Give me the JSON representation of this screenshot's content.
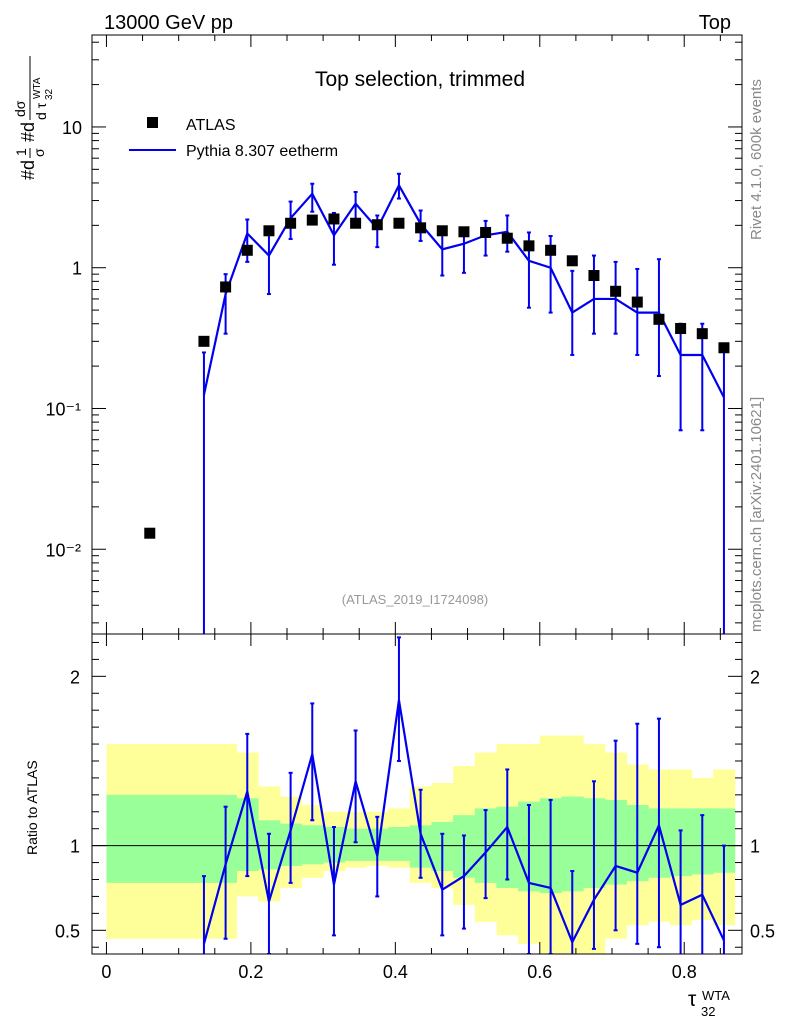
{
  "header": {
    "energy": "13000 GeV pp",
    "process": "Top"
  },
  "side": {
    "rivet": "Rivet 4.1.0,  600k events",
    "source": "mcplots.cern.ch [arXiv:2401.10621]"
  },
  "watermark": "(ATLAS_2019_I1724098)",
  "colors": {
    "data": "#000000",
    "mc": "#0000ee",
    "band_outer": "#ffff99",
    "band_inner": "#99ff99"
  },
  "chart_data": {
    "type": "line",
    "title": "Top selection, trimmed",
    "xlabel": "τ32 WTA",
    "ylabel_main": "#d1/σ #d dσ/d τ32 WTA",
    "ylabel_ratio": "Ratio to ATLAS",
    "xlim": [
      -0.02,
      0.88
    ],
    "ylim_main": [
      0.0025,
      45
    ],
    "ylim_ratio": [
      0.36,
      2.25
    ],
    "x_ticks": [
      "0",
      "0.2",
      "0.4",
      "0.6",
      "0.8"
    ],
    "y_ticks_main": [
      "10⁻²",
      "10⁻¹",
      "1",
      "10"
    ],
    "y_ticks_ratio": [
      "0.5",
      "1",
      "2"
    ],
    "legend": {
      "position": "top-left",
      "entries": [
        "ATLAS",
        "Pythia 8.307 eetherm"
      ]
    },
    "bin_edges": [
      0.0,
      0.12,
      0.15,
      0.18,
      0.21,
      0.24,
      0.27,
      0.3,
      0.33,
      0.36,
      0.39,
      0.42,
      0.45,
      0.48,
      0.51,
      0.54,
      0.57,
      0.6,
      0.63,
      0.66,
      0.69,
      0.72,
      0.75,
      0.78,
      0.81,
      0.84,
      0.87
    ],
    "series": [
      {
        "name": "ATLAS",
        "style": "markers",
        "x": [
          0.06,
          0.135,
          0.165,
          0.195,
          0.225,
          0.255,
          0.285,
          0.315,
          0.345,
          0.375,
          0.405,
          0.435,
          0.465,
          0.495,
          0.525,
          0.555,
          0.585,
          0.615,
          0.645,
          0.675,
          0.705,
          0.735,
          0.765,
          0.795,
          0.825,
          0.855
        ],
        "values": [
          0.013,
          0.3,
          0.73,
          1.33,
          1.83,
          2.07,
          2.18,
          2.22,
          2.07,
          2.02,
          2.07,
          1.92,
          1.83,
          1.8,
          1.78,
          1.62,
          1.43,
          1.33,
          1.12,
          0.88,
          0.68,
          0.57,
          0.43,
          0.37,
          0.34,
          0.27
        ]
      },
      {
        "name": "Pythia 8.307 eetherm",
        "style": "line",
        "x": [
          0.135,
          0.165,
          0.195,
          0.225,
          0.255,
          0.285,
          0.315,
          0.345,
          0.375,
          0.405,
          0.435,
          0.465,
          0.495,
          0.525,
          0.555,
          0.585,
          0.615,
          0.645,
          0.675,
          0.705,
          0.735,
          0.765,
          0.795,
          0.825,
          0.855
        ],
        "values": [
          0.125,
          0.65,
          1.75,
          1.22,
          2.25,
          3.35,
          1.7,
          2.85,
          1.9,
          3.85,
          2.05,
          1.35,
          1.48,
          1.7,
          1.8,
          1.12,
          1.0,
          0.48,
          0.6,
          0.6,
          0.48,
          0.48,
          0.24,
          0.24,
          0.12
        ],
        "err_high": [
          0.25,
          0.9,
          2.2,
          1.95,
          2.95,
          3.95,
          2.45,
          3.45,
          2.35,
          4.65,
          2.55,
          1.95,
          1.9,
          2.15,
          2.35,
          1.78,
          1.68,
          0.95,
          1.22,
          1.1,
          0.98,
          1.15,
          0.4,
          0.4,
          0.27
        ],
        "err_low": [
          0.0,
          0.34,
          1.1,
          0.65,
          1.6,
          2.5,
          1.05,
          2.1,
          1.4,
          3.1,
          1.55,
          0.88,
          0.92,
          1.22,
          1.3,
          0.52,
          0.48,
          0.24,
          0.34,
          0.34,
          0.24,
          0.17,
          0.07,
          0.07,
          0.0
        ]
      }
    ],
    "ratio": {
      "values": [
        0.42,
        0.89,
        1.32,
        0.67,
        1.09,
        1.54,
        0.77,
        1.38,
        0.94,
        1.86,
        1.07,
        0.74,
        0.82,
        0.96,
        1.11,
        0.78,
        0.75,
        0.43,
        0.68,
        0.88,
        0.84,
        1.12,
        0.65,
        0.71,
        0.44
      ],
      "err_high": [
        0.82,
        1.23,
        1.66,
        1.07,
        1.43,
        1.84,
        1.11,
        1.68,
        1.17,
        2.23,
        1.33,
        1.07,
        1.06,
        1.21,
        1.45,
        1.24,
        1.27,
        0.85,
        1.38,
        1.62,
        1.72,
        1.75,
        1.09,
        1.18,
        1.0
      ],
      "err_low": [
        0.0,
        0.45,
        0.82,
        0.36,
        0.78,
        1.15,
        0.47,
        1.02,
        0.7,
        1.5,
        0.81,
        0.47,
        0.51,
        0.69,
        0.8,
        0.36,
        0.36,
        0.21,
        0.39,
        0.5,
        0.42,
        0.4,
        0.19,
        0.21,
        0.0
      ],
      "band_outer_high": [
        1.6,
        1.6,
        1.6,
        1.55,
        1.35,
        1.29,
        1.24,
        1.2,
        1.2,
        1.2,
        1.22,
        1.35,
        1.37,
        1.47,
        1.55,
        1.6,
        1.6,
        1.65,
        1.65,
        1.6,
        1.55,
        1.48,
        1.45,
        1.45,
        1.4,
        1.45
      ],
      "band_outer_low": [
        0.45,
        0.45,
        0.45,
        0.7,
        0.67,
        0.75,
        0.81,
        0.85,
        0.87,
        0.88,
        0.87,
        0.78,
        0.75,
        0.65,
        0.55,
        0.47,
        0.42,
        0.35,
        0.36,
        0.36,
        0.45,
        0.53,
        0.55,
        0.53,
        0.56,
        0.53
      ],
      "band_inner_high": [
        1.3,
        1.3,
        1.3,
        1.28,
        1.15,
        1.13,
        1.12,
        1.11,
        1.1,
        1.1,
        1.11,
        1.12,
        1.14,
        1.18,
        1.22,
        1.23,
        1.26,
        1.28,
        1.29,
        1.28,
        1.27,
        1.24,
        1.22,
        1.22,
        1.22,
        1.22
      ],
      "band_inner_low": [
        0.78,
        0.78,
        0.78,
        0.85,
        0.86,
        0.88,
        0.89,
        0.9,
        0.91,
        0.91,
        0.91,
        0.87,
        0.85,
        0.81,
        0.78,
        0.75,
        0.73,
        0.72,
        0.73,
        0.75,
        0.77,
        0.79,
        0.81,
        0.82,
        0.83,
        0.84
      ]
    }
  }
}
